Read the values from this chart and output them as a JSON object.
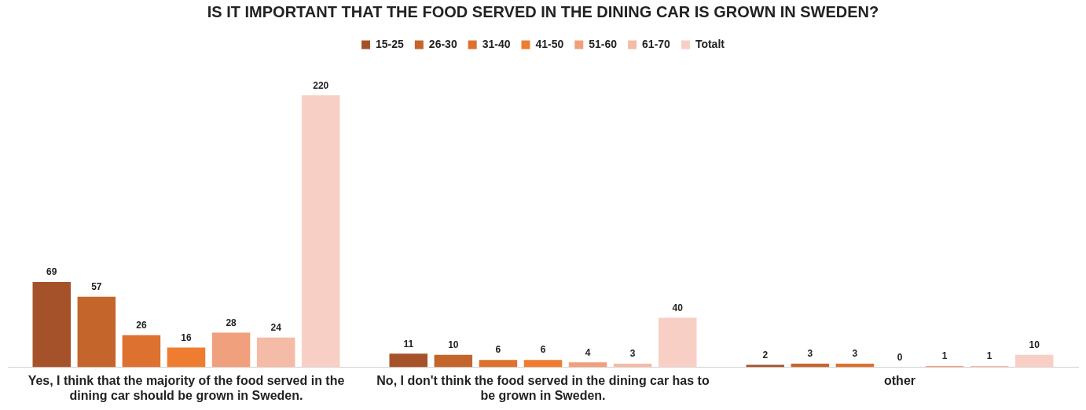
{
  "chart_data": {
    "type": "bar",
    "title": "IS IT IMPORTANT THAT THE FOOD SERVED IN THE DINING CAR IS GROWN IN SWEDEN?",
    "categories": [
      "Yes, I think that the majority of the food served in the dining car should be grown in Sweden.",
      "No, I don't think the food served in the dining car has to be grown in Sweden.",
      "other"
    ],
    "series": [
      {
        "name": "15-25",
        "color": "#a5522a",
        "values": [
          69,
          11,
          2
        ]
      },
      {
        "name": "26-30",
        "color": "#c4652c",
        "values": [
          57,
          10,
          3
        ]
      },
      {
        "name": "31-40",
        "color": "#dd712f",
        "values": [
          26,
          6,
          3
        ]
      },
      {
        "name": "41-50",
        "color": "#ee7d31",
        "values": [
          16,
          6,
          0
        ]
      },
      {
        "name": "51-60",
        "color": "#f0a07c",
        "values": [
          28,
          4,
          1
        ]
      },
      {
        "name": "61-70",
        "color": "#f4bba6",
        "values": [
          24,
          3,
          1
        ]
      },
      {
        "name": "Totalt",
        "color": "#f8cfc4",
        "values": [
          220,
          40,
          10
        ]
      }
    ],
    "data_labels": true,
    "legend": "top",
    "grid": false,
    "tick_labels": "x"
  }
}
